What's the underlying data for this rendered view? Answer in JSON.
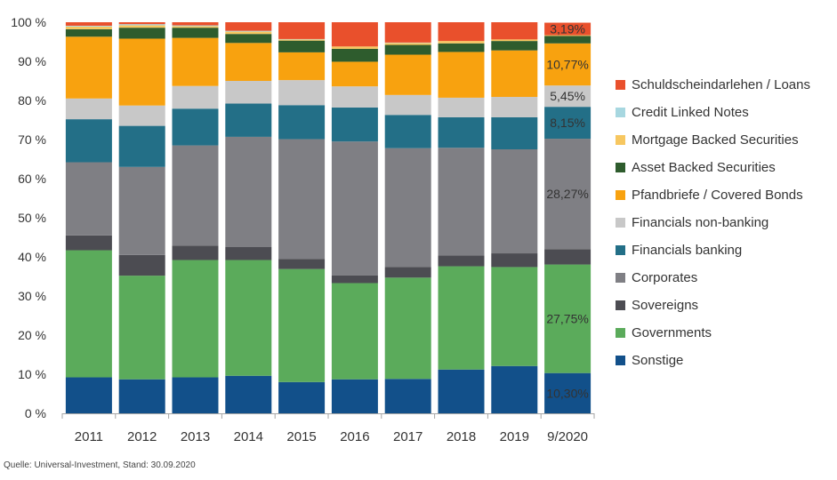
{
  "chart_data": {
    "type": "bar",
    "stacked": true,
    "categories": [
      "2011",
      "2012",
      "2013",
      "2014",
      "2015",
      "2016",
      "2017",
      "2018",
      "2019",
      "9/2020"
    ],
    "ylim": [
      0,
      100
    ],
    "yticks": [
      0,
      10,
      20,
      30,
      40,
      50,
      60,
      70,
      80,
      90,
      100
    ],
    "ytick_suffix": " %",
    "legend_position": "right",
    "grid": false,
    "series": [
      {
        "name": "Sonstige",
        "color": "#12508a",
        "values": [
          9.2,
          8.7,
          9.2,
          9.6,
          8.0,
          8.7,
          8.8,
          11.2,
          12.1,
          10.3
        ]
      },
      {
        "name": "Governments",
        "color": "#5bab5b",
        "values": [
          32.5,
          26.5,
          30.0,
          29.6,
          28.9,
          24.6,
          25.9,
          26.4,
          25.3,
          27.75
        ]
      },
      {
        "name": "Sovereigns",
        "color": "#4c4c52",
        "values": [
          3.8,
          5.3,
          3.7,
          3.3,
          2.6,
          2.0,
          2.7,
          2.8,
          3.5,
          3.9
        ]
      },
      {
        "name": "Corporates",
        "color": "#7f7f84",
        "values": [
          18.7,
          22.5,
          25.6,
          28.2,
          30.6,
          34.2,
          30.4,
          27.5,
          26.6,
          28.27
        ]
      },
      {
        "name": "Financials banking",
        "color": "#236f87",
        "values": [
          11.0,
          10.5,
          9.4,
          8.5,
          8.7,
          8.7,
          8.5,
          7.8,
          8.2,
          8.15
        ]
      },
      {
        "name": "Financials non-banking",
        "color": "#c8c8c8",
        "values": [
          5.3,
          5.2,
          5.8,
          5.8,
          6.4,
          5.4,
          5.1,
          5.0,
          5.2,
          5.45
        ]
      },
      {
        "name": "Pfandbriefe / Covered Bonds",
        "color": "#f8a20f",
        "values": [
          15.8,
          17.1,
          12.3,
          9.7,
          7.1,
          6.3,
          10.3,
          11.7,
          11.9,
          10.77
        ]
      },
      {
        "name": "Asset Backed Securities",
        "color": "#2e5c2d",
        "values": [
          1.9,
          2.8,
          2.6,
          2.3,
          3.0,
          3.3,
          2.5,
          2.2,
          2.4,
          1.9
        ]
      },
      {
        "name": "Mortgage Backed Securities",
        "color": "#f7c760",
        "values": [
          0.7,
          0.6,
          0.4,
          0.6,
          0.3,
          0.6,
          0.5,
          0.6,
          0.4,
          0.2
        ]
      },
      {
        "name": "Credit Linked Notes",
        "color": "#a7d7e0",
        "values": [
          0.2,
          0.3,
          0.2,
          0.2,
          0.1,
          0.0,
          0.1,
          0.0,
          0.0,
          0.0
        ]
      },
      {
        "name": "Schuldscheindarlehen / Loans",
        "color": "#e9502c",
        "values": [
          0.9,
          0.5,
          0.8,
          2.2,
          4.3,
          6.2,
          5.2,
          4.8,
          4.4,
          3.19
        ]
      }
    ],
    "data_labels": [
      {
        "category": "9/2020",
        "series": "Schuldscheindarlehen / Loans",
        "text": "3,19%"
      },
      {
        "category": "9/2020",
        "series": "Pfandbriefe / Covered Bonds",
        "text": "10,77%"
      },
      {
        "category": "9/2020",
        "series": "Financials non-banking",
        "text": "5,45%"
      },
      {
        "category": "9/2020",
        "series": "Financials banking",
        "text": "8,15%"
      },
      {
        "category": "9/2020",
        "series": "Corporates",
        "text": "28,27%"
      },
      {
        "category": "9/2020",
        "series": "Governments",
        "text": "27,75%"
      },
      {
        "category": "9/2020",
        "series": "Sonstige",
        "text": "10,30%"
      }
    ],
    "source": "Quelle: Universal-Investment, Stand: 30.09.2020"
  }
}
